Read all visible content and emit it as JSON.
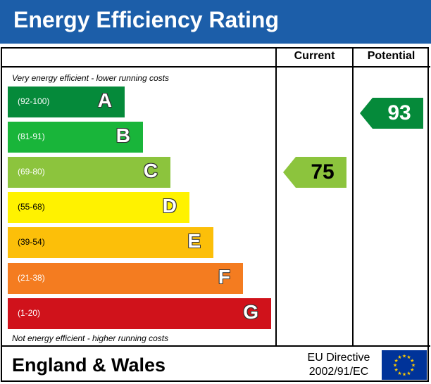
{
  "header": {
    "title": "Energy Efficiency Rating"
  },
  "columns": {
    "current": "Current",
    "potential": "Potential"
  },
  "notes": {
    "top": "Very energy efficient - lower running costs",
    "bottom": "Not energy efficient - higher running costs"
  },
  "bands": [
    {
      "range": "(92-100)",
      "letter": "A",
      "color": "#058a3a",
      "range_color": "#ffffff"
    },
    {
      "range": "(81-91)",
      "letter": "B",
      "color": "#19b53a",
      "range_color": "#ffffff"
    },
    {
      "range": "(69-80)",
      "letter": "C",
      "color": "#8cc43d",
      "range_color": "#ffffff"
    },
    {
      "range": "(55-68)",
      "letter": "D",
      "color": "#fff200",
      "range_color": "#000000"
    },
    {
      "range": "(39-54)",
      "letter": "E",
      "color": "#fcbf09",
      "range_color": "#000000"
    },
    {
      "range": "(21-38)",
      "letter": "F",
      "color": "#f47c20",
      "range_color": "#ffffff"
    },
    {
      "range": "(1-20)",
      "letter": "G",
      "color": "#d0121b",
      "range_color": "#ffffff"
    }
  ],
  "current_rating": {
    "value": "75",
    "color": "#8cc43d"
  },
  "potential_rating": {
    "value": "93",
    "color": "#058a3a"
  },
  "footer": {
    "title": "England & Wales",
    "directive_line1": "EU Directive",
    "directive_line2": "2002/91/EC",
    "flag_icon": "eu-flag-icon",
    "flag_color": "#003399",
    "star_color": "#ffcc00"
  }
}
